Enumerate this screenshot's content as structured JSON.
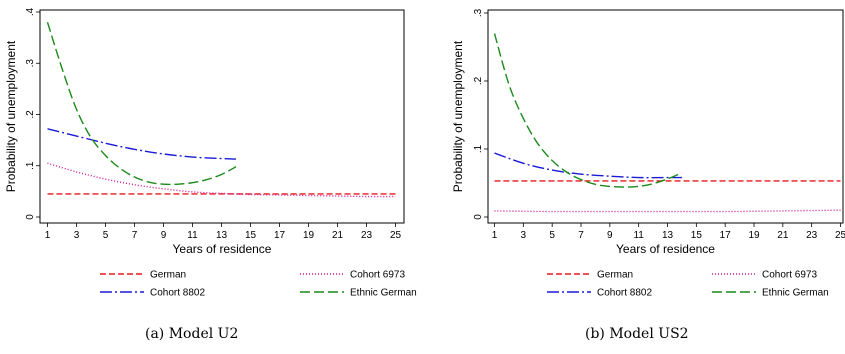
{
  "captions": [
    "(a) Model U2",
    "(b) Model US2"
  ],
  "legend_entries": [
    {
      "name": "German",
      "color": "#e8191b",
      "dash": "6,3"
    },
    {
      "name": "Cohort 6973",
      "color": "#d4148c",
      "dash": "1,2"
    },
    {
      "name": "Cohort 8802",
      "color": "#1a1ad6",
      "dash": "12,3,2,3"
    },
    {
      "name": "Ethnic German",
      "color": "#1a8a1a",
      "dash": "10,4"
    }
  ],
  "chart_data": [
    {
      "type": "line",
      "title": "",
      "xlabel": "Years of residence",
      "ylabel": "Probability of unemployment",
      "xlim": [
        1,
        25
      ],
      "ylim": [
        0,
        0.4
      ],
      "xticks": [
        1,
        3,
        5,
        7,
        9,
        11,
        13,
        15,
        17,
        19,
        21,
        23,
        25
      ],
      "xtick_labels": [
        "1",
        "3",
        "5",
        "7",
        "9",
        "11",
        "13",
        "15",
        "17",
        "19",
        "21",
        "23",
        "25"
      ],
      "yticks": [
        0,
        0.1,
        0.2,
        0.3,
        0.4
      ],
      "ytick_labels": [
        "0",
        ".1",
        ".2",
        ".3",
        ".4"
      ],
      "grid": false,
      "legend_position": "bottom",
      "series": [
        {
          "name": "German",
          "x": [
            1,
            25
          ],
          "y": [
            0.045,
            0.045
          ]
        },
        {
          "name": "Cohort 6973",
          "x": [
            1,
            3,
            5,
            7,
            9,
            11,
            13,
            15,
            17,
            19,
            21,
            23,
            25
          ],
          "y": [
            0.105,
            0.088,
            0.074,
            0.063,
            0.055,
            0.049,
            0.046,
            0.044,
            0.043,
            0.042,
            0.041,
            0.04,
            0.04
          ]
        },
        {
          "name": "Cohort 8802",
          "x": [
            1,
            3,
            5,
            7,
            9,
            11,
            13,
            14
          ],
          "y": [
            0.172,
            0.158,
            0.144,
            0.132,
            0.123,
            0.117,
            0.114,
            0.113
          ]
        },
        {
          "name": "Ethnic German",
          "x": [
            1,
            2,
            3,
            4,
            5,
            6,
            7,
            8,
            9,
            10,
            11,
            12,
            13,
            14
          ],
          "y": [
            0.38,
            0.29,
            0.21,
            0.155,
            0.12,
            0.095,
            0.078,
            0.068,
            0.064,
            0.064,
            0.067,
            0.073,
            0.083,
            0.098
          ]
        }
      ]
    },
    {
      "type": "line",
      "title": "",
      "xlabel": "Years of residence",
      "ylabel": "Probability of unemployment",
      "xlim": [
        1,
        25
      ],
      "ylim": [
        0,
        0.3
      ],
      "xticks": [
        1,
        3,
        5,
        7,
        9,
        11,
        13,
        15,
        17,
        19,
        21,
        23,
        25
      ],
      "xtick_labels": [
        "1",
        "3",
        "5",
        "7",
        "9",
        "11",
        "13",
        "15",
        "17",
        "19",
        "21",
        "23",
        "25"
      ],
      "yticks": [
        0,
        0.1,
        0.2,
        0.3
      ],
      "ytick_labels": [
        "0",
        ".1",
        ".2",
        ".3"
      ],
      "grid": false,
      "legend_position": "bottom",
      "series": [
        {
          "name": "German",
          "x": [
            1,
            25
          ],
          "y": [
            0.053,
            0.053
          ]
        },
        {
          "name": "Cohort 6973",
          "x": [
            1,
            5,
            9,
            13,
            17,
            21,
            25
          ],
          "y": [
            0.009,
            0.008,
            0.008,
            0.008,
            0.008,
            0.009,
            0.01
          ]
        },
        {
          "name": "Cohort 8802",
          "x": [
            1,
            3,
            5,
            7,
            9,
            11,
            13,
            14
          ],
          "y": [
            0.094,
            0.079,
            0.069,
            0.063,
            0.06,
            0.058,
            0.058,
            0.058
          ]
        },
        {
          "name": "Ethnic German",
          "x": [
            1,
            2,
            3,
            4,
            5,
            6,
            7,
            8,
            9,
            10,
            11,
            12,
            13,
            14
          ],
          "y": [
            0.27,
            0.195,
            0.145,
            0.108,
            0.083,
            0.066,
            0.055,
            0.048,
            0.045,
            0.044,
            0.045,
            0.049,
            0.056,
            0.065
          ]
        }
      ]
    }
  ]
}
